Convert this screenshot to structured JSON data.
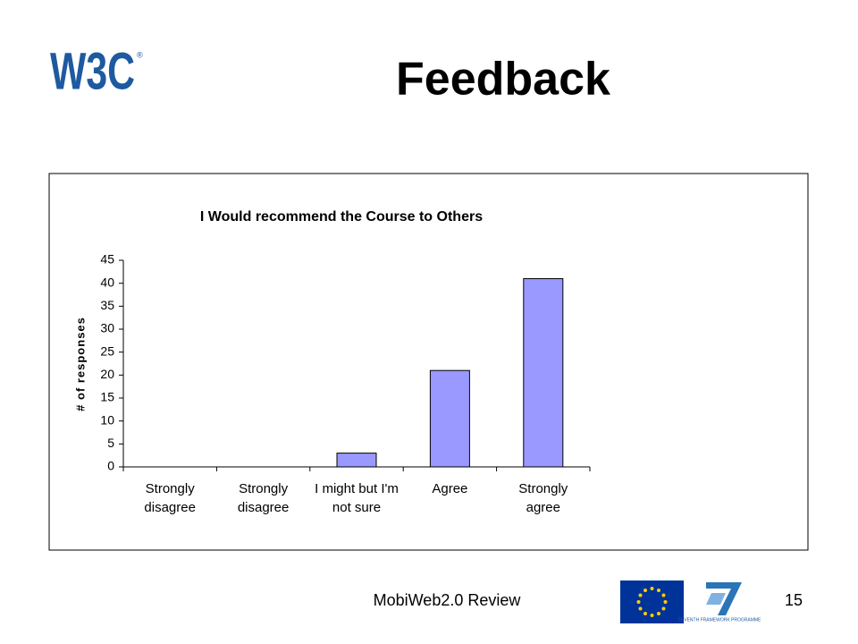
{
  "logo": "W3C",
  "slide_title": "Feedback",
  "chart_data": {
    "type": "bar",
    "title": "I Would recommend the Course to Others",
    "y_label": "# of responses",
    "categories": [
      "Strongly disagree",
      "Strongly disagree",
      "I might but I'm not sure",
      "Agree",
      "Strongly agree"
    ],
    "values": [
      0,
      0,
      3,
      21,
      41
    ],
    "color": "#9999ff",
    "ylim": [
      0,
      45
    ],
    "yticks": [
      0,
      5,
      10,
      15,
      20,
      25,
      30,
      35,
      40,
      45
    ],
    "grid": false
  },
  "footer": "MobiWeb2.0 Review",
  "page_number": "15",
  "fp7_logo": "SEVENTH FRAMEWORK PROGRAMME"
}
